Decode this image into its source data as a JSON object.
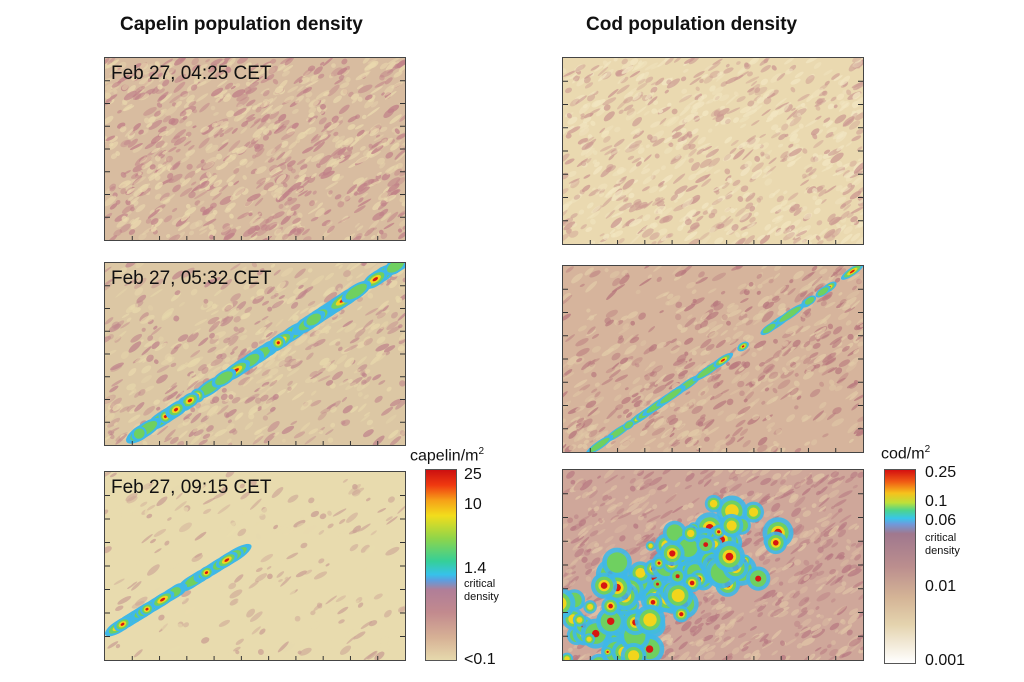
{
  "chart_data": [
    {
      "type": "heatmap",
      "species": "capelin",
      "title": "Capelin population density",
      "colorbar": {
        "unit_base": "capelin/m",
        "unit_exp": "2",
        "ticks": [
          "25",
          "10",
          "1.4",
          "<0.1"
        ],
        "annotation": [
          "critical",
          "density"
        ],
        "critical_density": 1.4,
        "scale": "log"
      },
      "panels": [
        {
          "timestamp": "Feb 27, 04:25 CET",
          "pattern": "diffuse"
        },
        {
          "timestamp": "Feb 27, 05:32 CET",
          "pattern": "diagonal band"
        },
        {
          "timestamp": "Feb 27, 09:15 CET",
          "pattern": "sparse band"
        }
      ]
    },
    {
      "type": "heatmap",
      "species": "cod",
      "title": "Cod population density",
      "colorbar": {
        "unit_base": "cod/m",
        "unit_exp": "2",
        "ticks": [
          "0.25",
          "0.1",
          "0.06",
          "0.01",
          "0.001"
        ],
        "annotation": [
          "critical",
          "density"
        ],
        "critical_density": 0.06,
        "scale": "log"
      },
      "panels": [
        {
          "timestamp": "",
          "pattern": "diffuse"
        },
        {
          "timestamp": "",
          "pattern": "diagonal band"
        },
        {
          "timestamp": "",
          "pattern": "dense cluster"
        }
      ]
    }
  ],
  "colors": {
    "background": "#e6d9ae",
    "low_density": "#c2868a",
    "critical": "#3fb8e8",
    "mid": "#6fd060",
    "high": "#f2d51c",
    "peak": "#d81612"
  }
}
